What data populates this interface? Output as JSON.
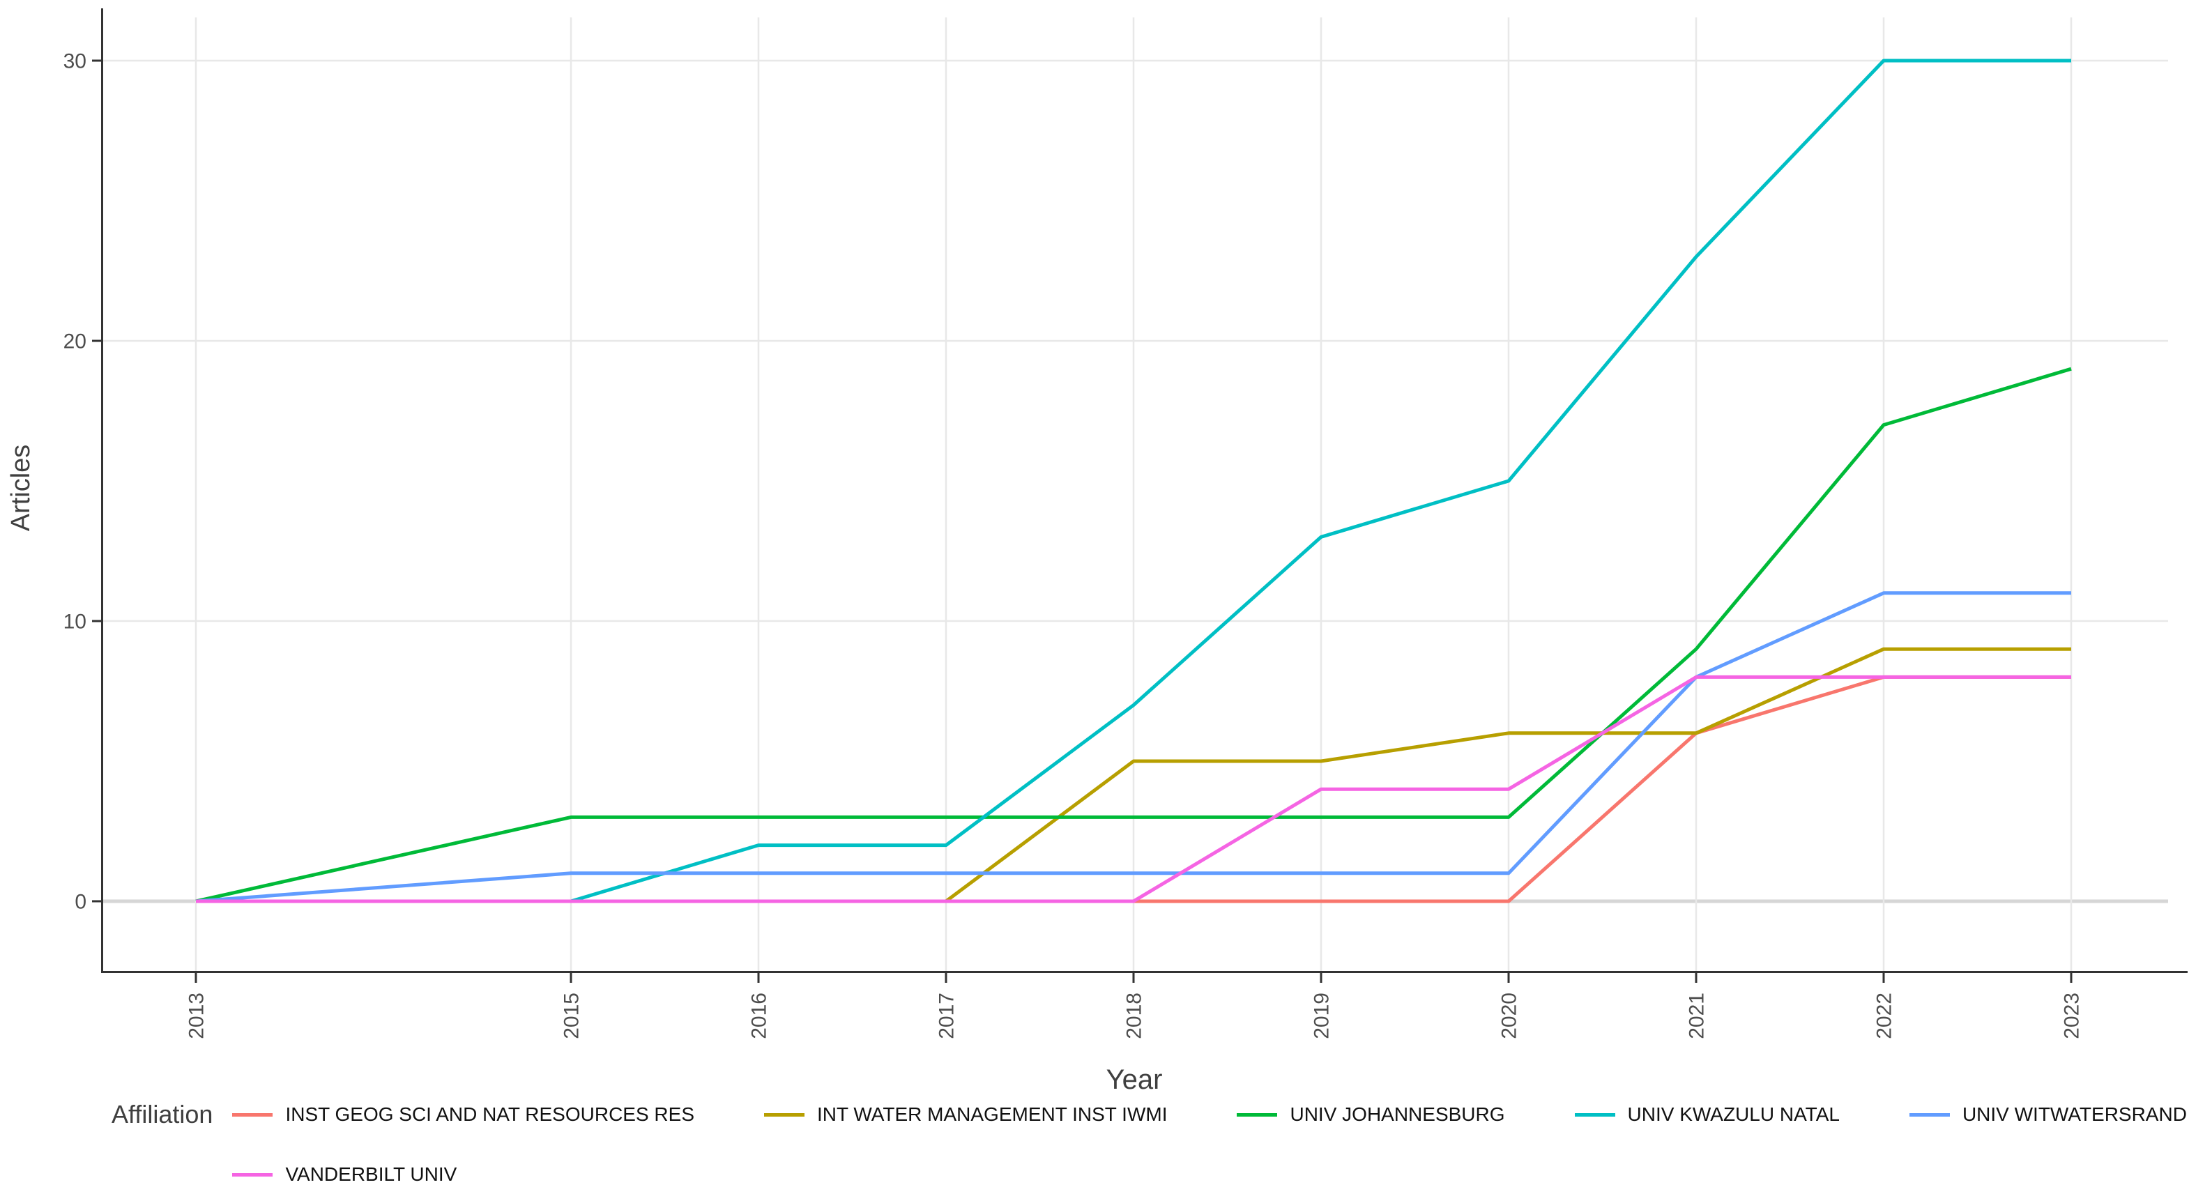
{
  "chart_data": {
    "type": "line",
    "title": "",
    "xlabel": "Year",
    "ylabel": "Articles",
    "legend_title": "Affiliation",
    "legend_position": "bottom",
    "grid": "major-only",
    "panel_background": "#ffffff",
    "gridline_color": "#e8e8e8",
    "zero_gridline_color": "#d6d6d6",
    "axis_line_color": "#333333",
    "tick_label_color": "#4d4d4d",
    "axis_title_color": "#3f3f3f",
    "x": [
      2013,
      2015,
      2016,
      2017,
      2018,
      2019,
      2020,
      2021,
      2022,
      2023
    ],
    "x_tick_labels": [
      "2013",
      "2015",
      "2016",
      "2017",
      "2018",
      "2019",
      "2020",
      "2021",
      "2022",
      "2023"
    ],
    "y_ticks": [
      0,
      10,
      20,
      30
    ],
    "y_tick_labels": [
      "0",
      "10",
      "20",
      "30"
    ],
    "ylim": [
      0,
      30
    ],
    "series": [
      {
        "name": "INST GEOG SCI AND NAT RESOURCES RES",
        "color": "#F8766D",
        "values": [
          0,
          0,
          0,
          0,
          0,
          0,
          0,
          6,
          8,
          8
        ]
      },
      {
        "name": "INT WATER MANAGEMENT INST IWMI",
        "color": "#B79F00",
        "values": [
          0,
          0,
          0,
          0,
          5,
          5,
          6,
          6,
          9,
          9
        ]
      },
      {
        "name": "UNIV JOHANNESBURG",
        "color": "#00BA38",
        "values": [
          0,
          3,
          3,
          3,
          3,
          3,
          3,
          9,
          17,
          19
        ]
      },
      {
        "name": "UNIV KWAZULU NATAL",
        "color": "#00BFC4",
        "values": [
          0,
          0,
          2,
          2,
          7,
          13,
          15,
          23,
          30,
          30
        ]
      },
      {
        "name": "UNIV WITWATERSRAND",
        "color": "#619CFF",
        "values": [
          0,
          1,
          1,
          1,
          1,
          1,
          1,
          8,
          11,
          11
        ]
      },
      {
        "name": "VANDERBILT UNIV",
        "color": "#F564E3",
        "values": [
          0,
          0,
          0,
          0,
          0,
          4,
          4,
          8,
          8,
          8
        ]
      }
    ],
    "legend_rows": [
      [
        0,
        1,
        2,
        3,
        4
      ],
      [
        5
      ]
    ]
  }
}
